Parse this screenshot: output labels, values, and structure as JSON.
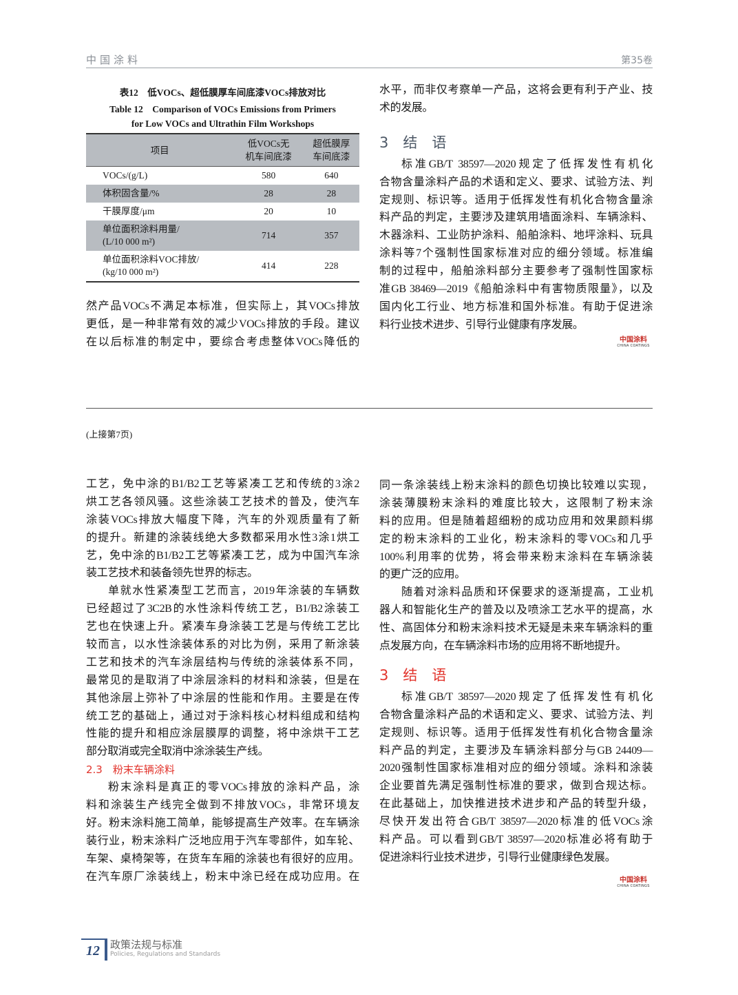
{
  "header": {
    "journal": "中国涂料",
    "volume": "第35卷"
  },
  "table": {
    "caption_cn": "表12　低VOCs、超低膜厚车间底漆VOCs排放对比",
    "caption_en_1": "Table 12　Comparison of VOCs Emissions from Primers",
    "caption_en_2": "for Low VOCs and Ultrathin Film Workshops",
    "headers": [
      "项目",
      "低VOCs无\n机车间底漆",
      "超低膜厚\n车间底漆"
    ],
    "rows": [
      [
        "VOCs/(g/L)",
        "580",
        "640"
      ],
      [
        "体积固含量/%",
        "28",
        "28"
      ],
      [
        "干膜厚度/μm",
        "20",
        "10"
      ],
      [
        "单位面积涂料用量/\n(L/10 000 m²)",
        "714",
        "357"
      ],
      [
        "单位面积涂料VOC排放/\n(kg/10 000 m²)",
        "414",
        "228"
      ]
    ]
  },
  "top_left": {
    "paragraphs": [
      [
        "然产品VOCs不满足本标准，但实际上，其VOCs排放",
        "更低，是一种非常有效的减少VOCs排放的手段。建议",
        "在以后标准的制定中，要综合考虑整体VOCs降低的"
      ]
    ]
  },
  "top_right": {
    "paragraphs_before": [
      [
        "水平，而非仅考察单一产品，这将会更有利于产业、技",
        "术的发展。"
      ]
    ],
    "heading": "3　结　语",
    "paragraphs": [
      [
        "标准GB/T 38597—2020规定了低挥发性有机化",
        "合物含量涂料产品的术语和定义、要求、试验方法、判",
        "定规则、标识等。适用于低挥发性有机化合物含量涂",
        "料产品的判定，主要涉及建筑用墙面涂料、车辆涂料、",
        "木器涂料、工业防护涂料、船舶涂料、地坪涂料、玩具",
        "涂料等7个强制性国家标准对应的细分领域。标准编",
        "制的过程中，船舶涂料部分主要参考了强制性国家标",
        "准GB 38469—2019《船舶涂料中有害物质限量》，以及",
        "国内化工行业、地方标准和国外标准。有助于促进涂",
        "料行业技术进步、引导行业健康有序发展。"
      ]
    ]
  },
  "logo": {
    "cn": "中国涂料",
    "en": "CHINA COATINGS"
  },
  "continued_note": "(上接第7页)",
  "bottom_left": {
    "paragraphs_a": [
      [
        "工艺，免中涂的B1/B2工艺等紧凑工艺和传统的3涂2",
        "烘工艺各领风骚。这些涂装工艺技术的普及，使汽车",
        "涂装VOCs排放大幅度下降，汽车的外观质量有了新",
        "的提升。新建的涂装线绝大多数都采用水性3涂1烘工",
        "艺，免中涂的B1/B2工艺等紧凑工艺，成为中国汽车涂",
        "装工艺技术和装备领先世界的标志。"
      ],
      [
        "单就水性紧凑型工艺而言，2019年涂装的车辆数",
        "已经超过了3C2B的水性涂料传统工艺，B1/B2涂装工",
        "艺也在快速上升。紧凑车身涂装工艺是与传统工艺比",
        "较而言，以水性涂装体系的对比为例，采用了新涂装",
        "工艺和技术的汽车涂层结构与传统的涂装体系不同，",
        "最常见的是取消了中涂层涂料的材料和涂装，但是在",
        "其他涂层上弥补了中涂层的性能和作用。主要是在传",
        "统工艺的基础上，通过对于涂料核心材料组成和结构",
        "性能的提升和相应涂层膜厚的调整，将中涂烘干工艺",
        "部分取消或完全取消中涂涂装生产线。"
      ]
    ],
    "subheading": "2.3　粉末车辆涂料",
    "paragraphs_b": [
      [
        "粉末涂料是真正的零VOCs排放的涂料产品，涂",
        "料和涂装生产线完全做到不排放VOCs，非常环境友",
        "好。粉末涂料施工简单，能够提高生产效率。在车辆涂",
        "装行业，粉末涂料广泛地应用于汽车零部件，如车轮、",
        "车架、桌椅架等，在货车车厢的涂装也有很好的应用。",
        "在汽车原厂涂装线上，粉末中涂已经在成功应用。在"
      ]
    ]
  },
  "bottom_right": {
    "paragraphs_a": [
      [
        "同一条涂装线上粉末涂料的颜色切换比较难以实现，",
        "涂装薄膜粉末涂料的难度比较大，这限制了粉末涂",
        "料的应用。但是随着超细粉的成功应用和效果颜料绑",
        "定的粉末涂料的工业化，粉末涂料的零VOCs和几乎",
        "100%利用率的优势，将会带来粉末涂料在车辆涂装",
        "的更广泛的应用。"
      ],
      [
        "随着对涂料品质和环保要求的逐渐提高，工业机",
        "器人和智能化生产的普及以及喷涂工艺水平的提高，水",
        "性、高固体分和粉末涂料技术无疑是未来车辆涂料的重",
        "点发展方向，在车辆涂料市场的应用将不断地提升。"
      ]
    ],
    "heading": "3　结　语",
    "paragraphs_b": [
      [
        "标准GB/T 38597—2020规定了低挥发性有机化",
        "合物含量涂料产品的术语和定义、要求、试验方法、判",
        "定规则、标识等。适用于低挥发性有机化合物含量涂",
        "料产品的判定，主要涉及车辆涂料部分与GB 24409—",
        "2020强制性国家标准相对应的细分领域。涂料和涂装",
        "企业要首先满足强制性标准的要求，做到合规达标。",
        "在此基础上，加快推进技术进步和产品的转型升级，",
        "尽快开发出符合GB/T 38597—2020标准的低VOCs涂",
        "料产品。可以看到GB/T 38597—2020标准必将有助于",
        "促进涂料行业技术进步，引导行业健康绿色发展。"
      ]
    ]
  },
  "footer": {
    "page_number": "12",
    "section_cn": "政策法规与标准",
    "section_en": "Policies, Regulations and Standards"
  },
  "colors": {
    "heading_gray": "#4d5866",
    "heading_red": "#e2342c",
    "table_shade": "#b8bcc1",
    "footer_blue": "#3a5a8c"
  }
}
